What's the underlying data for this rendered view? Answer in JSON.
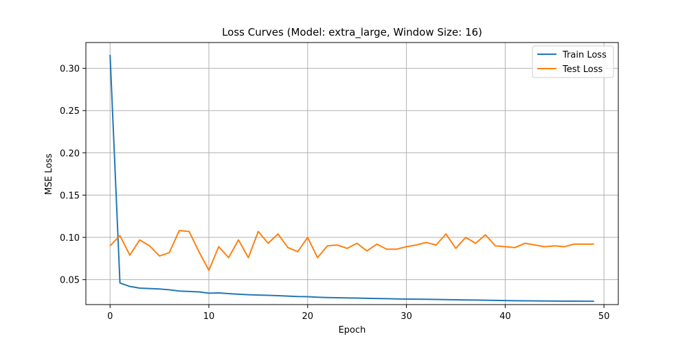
{
  "chart_data": {
    "type": "line",
    "title": "Loss Curves (Model: extra_large, Window Size: 16)",
    "xlabel": "Epoch",
    "ylabel": "MSE Loss",
    "xlim": [
      -2.45,
      51.45
    ],
    "ylim": [
      0.0205,
      0.3305
    ],
    "xticks": [
      0,
      10,
      20,
      30,
      40,
      50
    ],
    "yticks": [
      0.05,
      0.1,
      0.15,
      0.2,
      0.25,
      0.3
    ],
    "ytick_labels": [
      "0.05",
      "0.10",
      "0.15",
      "0.20",
      "0.25",
      "0.30"
    ],
    "grid": true,
    "legend_position": "top-right",
    "x": [
      0,
      1,
      2,
      3,
      4,
      5,
      6,
      7,
      8,
      9,
      10,
      11,
      12,
      13,
      14,
      15,
      16,
      17,
      18,
      19,
      20,
      21,
      22,
      23,
      24,
      25,
      26,
      27,
      28,
      29,
      30,
      31,
      32,
      33,
      34,
      35,
      36,
      37,
      38,
      39,
      40,
      41,
      42,
      43,
      44,
      45,
      46,
      47,
      48,
      49
    ],
    "series": [
      {
        "name": "Train Loss",
        "color": "#1f77b4",
        "values": [
          0.316,
          0.046,
          0.042,
          0.04,
          0.0395,
          0.039,
          0.038,
          0.0365,
          0.036,
          0.0355,
          0.034,
          0.0343,
          0.0335,
          0.0328,
          0.0322,
          0.0318,
          0.0315,
          0.031,
          0.0305,
          0.03,
          0.0298,
          0.0292,
          0.0288,
          0.0286,
          0.0284,
          0.0282,
          0.0279,
          0.0277,
          0.0275,
          0.0272,
          0.027,
          0.0269,
          0.0268,
          0.0266,
          0.0264,
          0.0262,
          0.026,
          0.0259,
          0.0257,
          0.0255,
          0.0253,
          0.0251,
          0.025,
          0.0249,
          0.0248,
          0.0247,
          0.0246,
          0.0246,
          0.0245,
          0.0245
        ]
      },
      {
        "name": "Test Loss",
        "color": "#ff7f0e",
        "values": [
          0.09,
          0.102,
          0.079,
          0.097,
          0.09,
          0.078,
          0.082,
          0.108,
          0.107,
          0.083,
          0.061,
          0.089,
          0.076,
          0.097,
          0.076,
          0.107,
          0.093,
          0.104,
          0.088,
          0.083,
          0.1,
          0.076,
          0.09,
          0.091,
          0.087,
          0.093,
          0.084,
          0.092,
          0.086,
          0.086,
          0.089,
          0.091,
          0.094,
          0.091,
          0.104,
          0.087,
          0.1,
          0.093,
          0.103,
          0.09,
          0.089,
          0.088,
          0.093,
          0.091,
          0.089,
          0.09,
          0.089,
          0.092,
          0.092,
          0.092
        ]
      }
    ]
  }
}
